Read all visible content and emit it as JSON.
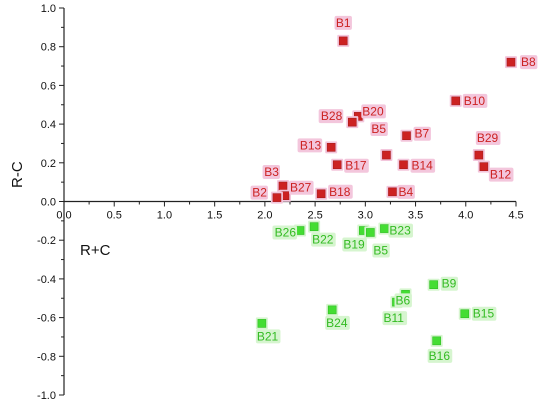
{
  "chart_data": {
    "type": "scatter",
    "xlabel": "R+C",
    "ylabel": "R-C",
    "xlim": [
      0.0,
      4.5
    ],
    "ylim": [
      -1.0,
      1.0
    ],
    "x_ticks": [
      "0.0",
      "0.5",
      "1.0",
      "1.5",
      "2.0",
      "2.5",
      "3.0",
      "3.5",
      "4.0",
      "4.5"
    ],
    "y_ticks": [
      "1.0",
      "0.8",
      "0.6",
      "0.4",
      "0.2",
      "0.0",
      "-0.2",
      "-0.4",
      "-0.6",
      "-0.8",
      "-1.0"
    ],
    "grid": false,
    "colors": {
      "cause": "#cc2222",
      "cause_label": "#cc2222",
      "cause_halo": "#f3c6dc",
      "effect": "#44dd33",
      "effect_label": "#33bb22",
      "effect_halo": "#d6f5cf",
      "axis": "#222222"
    },
    "points": [
      {
        "label": "B1",
        "x": 2.78,
        "y": 0.83,
        "group": "cause"
      },
      {
        "label": "B8",
        "x": 4.45,
        "y": 0.72,
        "group": "cause"
      },
      {
        "label": "B10",
        "x": 3.9,
        "y": 0.52,
        "group": "cause"
      },
      {
        "label": "B20",
        "x": 2.93,
        "y": 0.44,
        "group": "cause"
      },
      {
        "label": "B28",
        "x": 2.87,
        "y": 0.41,
        "group": "cause"
      },
      {
        "label": "B7",
        "x": 3.41,
        "y": 0.34,
        "group": "cause"
      },
      {
        "label": "B5",
        "x": 3.21,
        "y": 0.24,
        "group": "cause"
      },
      {
        "label": "B13",
        "x": 2.66,
        "y": 0.28,
        "group": "cause"
      },
      {
        "label": "B29",
        "x": 4.13,
        "y": 0.24,
        "group": "cause"
      },
      {
        "label": "B17",
        "x": 2.72,
        "y": 0.19,
        "group": "cause"
      },
      {
        "label": "B14",
        "x": 3.38,
        "y": 0.19,
        "group": "cause"
      },
      {
        "label": "B12",
        "x": 4.18,
        "y": 0.18,
        "group": "cause"
      },
      {
        "label": "B3",
        "x": 2.18,
        "y": 0.08,
        "group": "cause"
      },
      {
        "label": "B27",
        "x": 2.2,
        "y": 0.03,
        "group": "cause"
      },
      {
        "label": "B2",
        "x": 2.12,
        "y": 0.02,
        "group": "cause"
      },
      {
        "label": "B18",
        "x": 2.56,
        "y": 0.04,
        "group": "cause"
      },
      {
        "label": "B4",
        "x": 3.27,
        "y": 0.05,
        "group": "cause"
      },
      {
        "label": "B26",
        "x": 2.35,
        "y": -0.15,
        "group": "effect"
      },
      {
        "label": "B22",
        "x": 2.49,
        "y": -0.13,
        "group": "effect"
      },
      {
        "label": "B19",
        "x": 2.98,
        "y": -0.15,
        "group": "effect"
      },
      {
        "label": "B5",
        "x": 3.05,
        "y": -0.16,
        "group": "effect"
      },
      {
        "label": "B23",
        "x": 3.19,
        "y": -0.14,
        "group": "effect"
      },
      {
        "label": "B9",
        "x": 3.68,
        "y": -0.43,
        "group": "effect"
      },
      {
        "label": "B6",
        "x": 3.4,
        "y": -0.48,
        "group": "effect"
      },
      {
        "label": "B11",
        "x": 3.31,
        "y": -0.52,
        "group": "effect"
      },
      {
        "label": "B15",
        "x": 3.99,
        "y": -0.58,
        "group": "effect"
      },
      {
        "label": "B24",
        "x": 2.67,
        "y": -0.56,
        "group": "effect"
      },
      {
        "label": "B21",
        "x": 1.97,
        "y": -0.63,
        "group": "effect"
      },
      {
        "label": "B16",
        "x": 3.71,
        "y": -0.72,
        "group": "effect"
      }
    ]
  }
}
